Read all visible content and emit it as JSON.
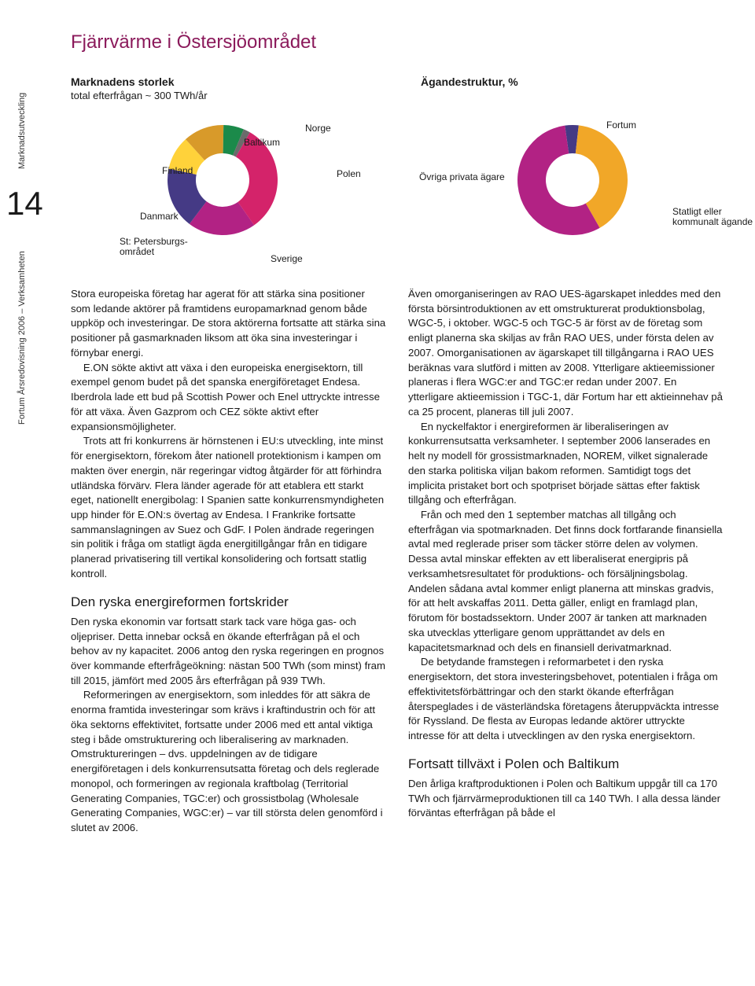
{
  "sidebar": {
    "label_top": "Marknadsutveckling",
    "page_number": "14",
    "label_bottom": "Fortum Årsredovisning 2006 – Verksamheten"
  },
  "title": "Fjärrvärme i Östersjöområdet",
  "chart_left": {
    "type": "donut",
    "title": "Marknadens storlek",
    "subtitle": "total efterfrågan ~ 300 TWh/år",
    "segments": [
      {
        "label": "Sverige",
        "value": 20,
        "color": "#b22284"
      },
      {
        "label": "St: Petersburgs-området",
        "value": 18,
        "color": "#453a85"
      },
      {
        "label": "Danmark",
        "value": 10,
        "color": "#ffd23a"
      },
      {
        "label": "Finland",
        "value": 12,
        "color": "#d89a2a"
      },
      {
        "label": "Baltikum",
        "value": 6,
        "color": "#1b8a4a"
      },
      {
        "label": "Norge",
        "value": 2,
        "color": "#6b6b6b"
      },
      {
        "label": "Polen",
        "value": 32,
        "color": "#d4236a"
      }
    ],
    "inner_radius": 34,
    "outer_radius": 70,
    "center_fill": "#ffffff"
  },
  "chart_right": {
    "type": "donut",
    "title": "Ägandestruktur, %",
    "segments": [
      {
        "label": "Fortum",
        "value": 4,
        "color": "#453a85"
      },
      {
        "label": "Statligt eller kommunalt ägande",
        "value": 40,
        "color": "#f1a728"
      },
      {
        "label": "Övriga privata ägare",
        "value": 56,
        "color": "#b22284"
      }
    ],
    "inner_radius": 34,
    "outer_radius": 70,
    "center_fill": "#ffffff"
  },
  "left_column": {
    "p1": "Stora europeiska företag har agerat för att stärka sina positioner som ledande aktörer på framtidens europamarknad genom både uppköp och investeringar. De stora aktörerna fortsatte att stärka sina positioner på gasmarknaden liksom att öka sina investeringar i förnybar energi.",
    "p2": "E.ON sökte aktivt att växa i den europeiska energisektorn, till exempel genom budet på det spanska energiföretaget Endesa. Iberdrola lade ett bud på Scottish Power och Enel uttryckte intresse för att växa. Även Gazprom och CEZ sökte aktivt efter expansionsmöjligheter.",
    "p3": "Trots att fri konkurrens är hörnstenen i EU:s utveckling, inte minst för energisektorn, förekom åter nationell protektionism i kampen om makten över energin, när regeringar vidtog åtgärder för att förhindra utländska förvärv. Flera länder agerade för att etablera ett starkt eget, nationellt energibolag: I Spanien satte konkurrensmyndigheten upp hinder för E.ON:s övertag av Endesa. I Frankrike fortsatte sammanslagningen av Suez och GdF. I Polen ändrade regeringen sin politik i fråga om statligt ägda energitillgångar från en tidigare planerad privatisering till vertikal konsolidering och fortsatt statlig kontroll.",
    "subhead": "Den ryska energireformen fortskrider",
    "p4": "Den ryska ekonomin var fortsatt stark tack vare höga gas- och oljepriser. Detta innebar också en ökande efterfrågan på el och behov av ny kapacitet. 2006 antog den ryska regeringen en prognos över kommande efterfrågeökning: nästan 500 TWh (som minst) fram till 2015, jämfört med 2005 års efterfrågan på 939 TWh.",
    "p5": "Reformeringen av energisektorn, som inleddes för att säkra de enorma framtida investeringar som krävs i kraftindustrin och för att öka sektorns effektivitet, fortsatte under 2006 med ett antal viktiga steg i både omstrukturering och liberalisering av marknaden. Omstruktureringen – dvs. uppdelningen av de tidigare energiföretagen i dels konkurrensutsatta företag och dels reglerade monopol, och formeringen av regionala kraftbolag (Territorial Generating Companies, TGC:er) och grossistbolag (Wholesale Generating Companies, WGC:er) – var till största delen genomförd i slutet av 2006."
  },
  "right_column": {
    "p1": "Även omorganiseringen av RAO UES-ägarskapet inleddes med den första börsintroduktionen av ett omstrukturerat produktionsbolag, WGC-5, i oktober. WGC-5 och TGC-5 är först av de företag som enligt planerna ska skiljas av från RAO UES, under första delen av 2007. Omorganisationen av ägarskapet till tillgångarna i RAO UES beräknas vara slutförd i mitten av 2008. Ytterligare aktieemissioner planeras i flera WGC:er and TGC:er redan under 2007. En ytterligare aktieemission i TGC-1, där Fortum har ett aktieinnehav på ca 25 procent, planeras till juli 2007.",
    "p2": "En nyckelfaktor i energireformen är liberaliseringen av konkurrensutsatta verksamheter. I september 2006 lanserades en helt ny modell för grossistmarknaden, NOREM, vilket signalerade den starka politiska viljan bakom reformen. Samtidigt togs det implicita pristaket bort och spotpriset började sättas efter faktisk tillgång och efterfrågan.",
    "p3": "Från och med den 1 september matchas all tillgång och efterfrågan via spotmarknaden. Det finns dock fortfarande finansiella avtal med reglerade priser som täcker större delen av volymen. Dessa avtal minskar effekten av ett liberaliserat energipris på verksamhetsresultatet för produktions- och försäljningsbolag. Andelen sådana avtal kommer enligt planerna att minskas gradvis, för att helt avskaffas 2011. Detta gäller, enligt en framlagd plan, förutom för bostadssektorn. Under 2007 är tanken att marknaden ska utvecklas ytterligare genom upprättandet av dels en kapacitetsmarknad och dels en finansiell derivatmarknad.",
    "p4": "De betydande framstegen i reformarbetet i den ryska energisektorn, det stora investeringsbehovet, potentialen i fråga om effektivitetsförbättringar och den starkt ökande efterfrågan återspeglades i de västerländska företagens återuppväckta intresse för Ryssland. De flesta av Europas ledande aktörer uttryckte intresse för att delta i utvecklingen av den ryska energisektorn.",
    "subhead": "Fortsatt tillväxt i Polen och Baltikum",
    "p5": "Den årliga kraftproduktionen i Polen och Baltikum uppgår till ca 170 TWh och fjärrvärmeproduktionen till ca 140 TWh. I alla dessa länder förväntas efterfrågan på både el"
  }
}
